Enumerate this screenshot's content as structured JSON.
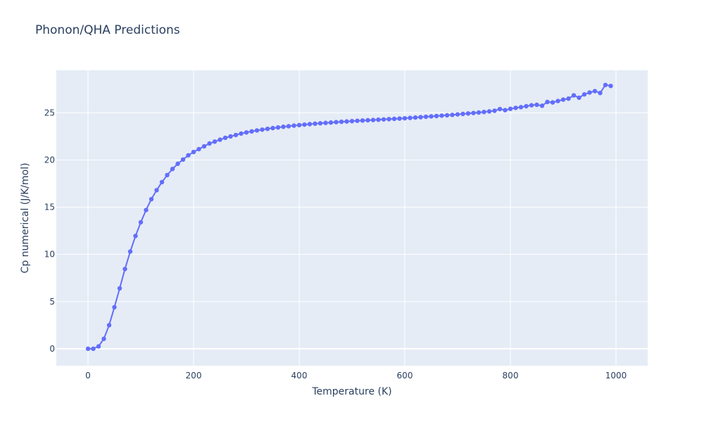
{
  "chart_data": {
    "type": "line",
    "title": "Phonon/QHA Predictions",
    "xlabel": "Temperature (K)",
    "ylabel": "Cp numerical (J/K/mol)",
    "xlim": [
      -60,
      1060
    ],
    "ylim": [
      -1.8,
      29.5
    ],
    "xticks": [
      0,
      200,
      400,
      600,
      800,
      1000
    ],
    "yticks": [
      0,
      5,
      10,
      15,
      20,
      25
    ],
    "grid": true,
    "colors": {
      "series": "#636efa",
      "plot_bg": "#e5ecf6",
      "grid": "#ffffff",
      "text": "#2a3f5f"
    },
    "series": [
      {
        "markers": true,
        "x": [
          0,
          10,
          20,
          30,
          40,
          50,
          60,
          70,
          80,
          90,
          100,
          110,
          120,
          130,
          140,
          150,
          160,
          170,
          180,
          190,
          200,
          210,
          220,
          230,
          240,
          250,
          260,
          270,
          280,
          290,
          300,
          310,
          320,
          330,
          340,
          350,
          360,
          370,
          380,
          390,
          400,
          410,
          420,
          430,
          440,
          450,
          460,
          470,
          480,
          490,
          500,
          510,
          520,
          530,
          540,
          550,
          560,
          570,
          580,
          590,
          600,
          610,
          620,
          630,
          640,
          650,
          660,
          670,
          680,
          690,
          700,
          710,
          720,
          730,
          740,
          750,
          760,
          770,
          780,
          790,
          800,
          810,
          820,
          830,
          840,
          850,
          860,
          870,
          880,
          890,
          900,
          910,
          920,
          930,
          940,
          950,
          960,
          970,
          980,
          990
        ],
        "y": [
          0,
          0,
          0.25,
          1.05,
          2.5,
          4.4,
          6.4,
          8.45,
          10.3,
          11.95,
          13.4,
          14.7,
          15.85,
          16.8,
          17.65,
          18.4,
          19.05,
          19.6,
          20.05,
          20.5,
          20.85,
          21.15,
          21.45,
          21.75,
          21.95,
          22.15,
          22.35,
          22.5,
          22.65,
          22.8,
          22.92,
          23.03,
          23.13,
          23.22,
          23.3,
          23.38,
          23.45,
          23.52,
          23.58,
          23.64,
          23.7,
          23.75,
          23.8,
          23.85,
          23.89,
          23.93,
          23.97,
          24.01,
          24.05,
          24.08,
          24.12,
          24.15,
          24.18,
          24.21,
          24.24,
          24.27,
          24.3,
          24.33,
          24.36,
          24.39,
          24.42,
          24.46,
          24.5,
          24.54,
          24.58,
          24.62,
          24.66,
          24.7,
          24.74,
          24.78,
          24.83,
          24.88,
          24.93,
          24.98,
          25.03,
          25.09,
          25.15,
          25.22,
          25.4,
          25.28,
          25.42,
          25.52,
          25.6,
          25.7,
          25.8,
          25.85,
          25.75,
          26.15,
          26.1,
          26.25,
          26.4,
          26.5,
          26.85,
          26.6,
          26.95,
          27.15,
          27.3,
          27.1,
          27.95,
          27.85
        ]
      }
    ]
  }
}
